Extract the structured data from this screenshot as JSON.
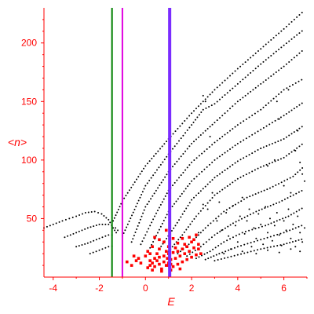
{
  "chart_data": {
    "type": "scatter",
    "xlabel": "E",
    "ylabel": "<n>",
    "xlim": [
      -4.4,
      7.0
    ],
    "ylim": [
      0,
      230
    ],
    "x_ticks": [
      -4,
      -2,
      0,
      2,
      4,
      6
    ],
    "y_ticks": [
      50,
      100,
      150,
      200
    ],
    "axis_color": "#ff0000",
    "grid": false,
    "vertical_lines": [
      {
        "x": -1.45,
        "color": "#008000"
      },
      {
        "x": -1.0,
        "color": "#e000e0"
      },
      {
        "x": 1.05,
        "color": "#7a2cff"
      }
    ],
    "series": [
      {
        "color": "#000000",
        "kind": "branches",
        "branches": [
          {
            "x": [
              -4.4,
              -3.6,
              -3.0,
              -2.6,
              -2.2,
              -1.9,
              -1.6,
              -1.4,
              -1.2
            ],
            "y": [
              42,
              48,
              52,
              55,
              56,
              54,
              49,
              42,
              36
            ]
          },
          {
            "x": [
              -3.5,
              -3.0,
              -2.5,
              -2.0,
              -1.6,
              -1.3,
              -1.1
            ],
            "y": [
              34,
              38,
              42,
              45,
              45,
              42,
              38
            ]
          },
          {
            "x": [
              -3.0,
              -2.5,
              -2.0,
              -1.6,
              -1.3
            ],
            "y": [
              26,
              29,
              33,
              36,
              36
            ]
          },
          {
            "x": [
              -2.4,
              -2.0,
              -1.6,
              -1.3
            ],
            "y": [
              20,
              23,
              26,
              27
            ]
          },
          {
            "x": [
              -1.4,
              -1.0,
              0.0,
              1.0,
              2.0,
              3.0,
              4.0,
              5.0,
              6.0,
              6.9
            ],
            "y": [
              48,
              65,
              95,
              118,
              140,
              160,
              178,
              195,
              212,
              228
            ]
          },
          {
            "x": [
              -1.0,
              0.0,
              1.0,
              2.0,
              2.5,
              3.0,
              4.0,
              5.0,
              6.0,
              6.9
            ],
            "y": [
              35,
              78,
              105,
              130,
              143,
              148,
              165,
              182,
              198,
              212
            ]
          },
          {
            "x": [
              -0.6,
              0.0,
              1.0,
              2.0,
              2.6,
              3.0,
              4.0,
              5.0,
              6.0,
              6.9
            ],
            "y": [
              30,
              60,
              90,
              114,
              125,
              132,
              150,
              165,
              180,
              195
            ]
          },
          {
            "x": [
              -0.2,
              0.4,
              1.0,
              2.0,
              3.0,
              4.0,
              5.0,
              6.0,
              6.9
            ],
            "y": [
              28,
              52,
              74,
              98,
              115,
              130,
              143,
              160,
              170
            ]
          },
          {
            "x": [
              0.2,
              1.0,
              2.0,
              3.0,
              4.0,
              5.0,
              6.0,
              6.9
            ],
            "y": [
              25,
              56,
              82,
              100,
              114,
              126,
              138,
              150
            ]
          },
          {
            "x": [
              0.6,
              1.3,
              2.0,
              3.0,
              4.0,
              5.0,
              6.0,
              6.9
            ],
            "y": [
              24,
              44,
              66,
              85,
              99,
              110,
              118,
              130
            ]
          },
          {
            "x": [
              1.0,
              1.6,
              2.2,
              3.0,
              4.0,
              5.0,
              6.0,
              6.9
            ],
            "y": [
              22,
              36,
              52,
              70,
              84,
              94,
              102,
              115
            ]
          },
          {
            "x": [
              1.4,
              2.0,
              2.6,
              3.4,
              4.4,
              5.4,
              6.4,
              6.9
            ],
            "y": [
              20,
              30,
              42,
              56,
              68,
              76,
              86,
              95
            ]
          },
          {
            "x": [
              1.8,
              2.4,
              3.0,
              3.8,
              4.8,
              5.8,
              6.9
            ],
            "y": [
              18,
              26,
              36,
              46,
              56,
              64,
              75
            ]
          },
          {
            "x": [
              2.2,
              2.8,
              3.4,
              4.2,
              5.2,
              6.2,
              6.9
            ],
            "y": [
              16,
              22,
              30,
              38,
              44,
              52,
              60
            ]
          },
          {
            "x": [
              2.6,
              3.2,
              4.0,
              5.0,
              6.0,
              6.9
            ],
            "y": [
              15,
              20,
              26,
              32,
              38,
              45
            ]
          },
          {
            "x": [
              3.0,
              4.0,
              5.0,
              6.0,
              6.9
            ],
            "y": [
              14,
              19,
              24,
              28,
              33
            ]
          }
        ],
        "points": [
          [
            2.3,
            38
          ],
          [
            2.5,
            62
          ],
          [
            2.7,
            58
          ],
          [
            2.9,
            72
          ],
          [
            3.1,
            48
          ],
          [
            3.2,
            64
          ],
          [
            3.3,
            40
          ],
          [
            3.5,
            55
          ],
          [
            3.6,
            35
          ],
          [
            3.8,
            61
          ],
          [
            3.9,
            44
          ],
          [
            4.0,
            30
          ],
          [
            4.1,
            52
          ],
          [
            4.2,
            68
          ],
          [
            4.3,
            37
          ],
          [
            4.4,
            48
          ],
          [
            4.5,
            58
          ],
          [
            4.6,
            26
          ],
          [
            4.7,
            42
          ],
          [
            4.8,
            33
          ],
          [
            4.9,
            54
          ],
          [
            5.0,
            45
          ],
          [
            5.1,
            28
          ],
          [
            5.2,
            60
          ],
          [
            5.3,
            38
          ],
          [
            5.4,
            50
          ],
          [
            5.5,
            31
          ],
          [
            5.6,
            44
          ],
          [
            5.7,
            55
          ],
          [
            5.8,
            36
          ],
          [
            5.9,
            27
          ],
          [
            6.0,
            48
          ],
          [
            6.1,
            40
          ],
          [
            6.2,
            58
          ],
          [
            6.3,
            33
          ],
          [
            6.4,
            45
          ],
          [
            6.5,
            26
          ],
          [
            6.6,
            52
          ],
          [
            6.7,
            38
          ],
          [
            6.8,
            30
          ],
          [
            6.9,
            42
          ],
          [
            3.4,
            20
          ],
          [
            3.7,
            24
          ],
          [
            4.2,
            22
          ],
          [
            4.8,
            20
          ],
          [
            5.3,
            23
          ],
          [
            5.8,
            21
          ],
          [
            6.3,
            24
          ],
          [
            6.7,
            22
          ],
          [
            5.7,
            150
          ],
          [
            5.8,
            135
          ],
          [
            6.2,
            160
          ],
          [
            6.5,
            108
          ],
          [
            6.6,
            125
          ],
          [
            6.7,
            98
          ],
          [
            6.8,
            88
          ],
          [
            6.9,
            82
          ],
          [
            5.0,
            110
          ],
          [
            5.3,
            95
          ],
          [
            5.6,
            100
          ],
          [
            6.0,
            78
          ],
          [
            6.3,
            72
          ],
          [
            2.8,
            120
          ],
          [
            2.6,
            150
          ],
          [
            2.5,
            155
          ]
        ]
      },
      {
        "color": "#ff0000",
        "kind": "cluster",
        "points": [
          [
            0.1,
            8
          ],
          [
            0.2,
            10
          ],
          [
            0.3,
            12
          ],
          [
            0.4,
            9
          ],
          [
            0.5,
            14
          ],
          [
            0.6,
            11
          ],
          [
            0.7,
            7
          ],
          [
            0.8,
            13
          ],
          [
            0.9,
            10
          ],
          [
            1.0,
            12
          ],
          [
            1.1,
            15
          ],
          [
            1.2,
            9
          ],
          [
            1.3,
            16
          ],
          [
            1.4,
            11
          ],
          [
            1.5,
            18
          ],
          [
            1.6,
            13
          ],
          [
            1.7,
            20
          ],
          [
            1.8,
            15
          ],
          [
            1.9,
            22
          ],
          [
            2.0,
            17
          ],
          [
            2.1,
            25
          ],
          [
            2.2,
            19
          ],
          [
            2.3,
            28
          ],
          [
            0.2,
            14
          ],
          [
            0.4,
            16
          ],
          [
            0.6,
            17
          ],
          [
            0.8,
            18
          ],
          [
            1.0,
            20
          ],
          [
            1.2,
            21
          ],
          [
            1.4,
            22
          ],
          [
            1.6,
            24
          ],
          [
            1.8,
            26
          ],
          [
            2.0,
            30
          ],
          [
            0.3,
            6
          ],
          [
            0.7,
            5
          ],
          [
            1.1,
            6
          ],
          [
            1.5,
            7
          ],
          [
            -0.2,
            12
          ],
          [
            -0.4,
            14
          ],
          [
            -0.6,
            10
          ],
          [
            -0.8,
            13
          ],
          [
            -0.3,
            16
          ],
          [
            0.0,
            18
          ],
          [
            -0.5,
            18
          ],
          [
            0.5,
            20
          ],
          [
            0.9,
            22
          ],
          [
            1.3,
            25
          ],
          [
            1.7,
            28
          ],
          [
            2.1,
            32
          ],
          [
            1.9,
            34
          ],
          [
            2.2,
            36
          ],
          [
            0.6,
            24
          ],
          [
            1.0,
            26
          ],
          [
            0.8,
            30
          ],
          [
            1.2,
            33
          ],
          [
            0.4,
            34
          ],
          [
            0.9,
            40
          ],
          [
            0.6,
            32
          ],
          [
            1.4,
            29
          ],
          [
            1.6,
            33
          ],
          [
            2.3,
            24
          ],
          [
            2.4,
            20
          ],
          [
            0.1,
            22
          ],
          [
            0.2,
            20
          ],
          [
            0.3,
            26
          ],
          [
            1.05,
            8
          ],
          [
            1.05,
            14
          ],
          [
            1.05,
            18
          ],
          [
            1.0,
            10
          ],
          [
            0.95,
            16
          ],
          [
            1.1,
            11
          ]
        ]
      }
    ]
  }
}
